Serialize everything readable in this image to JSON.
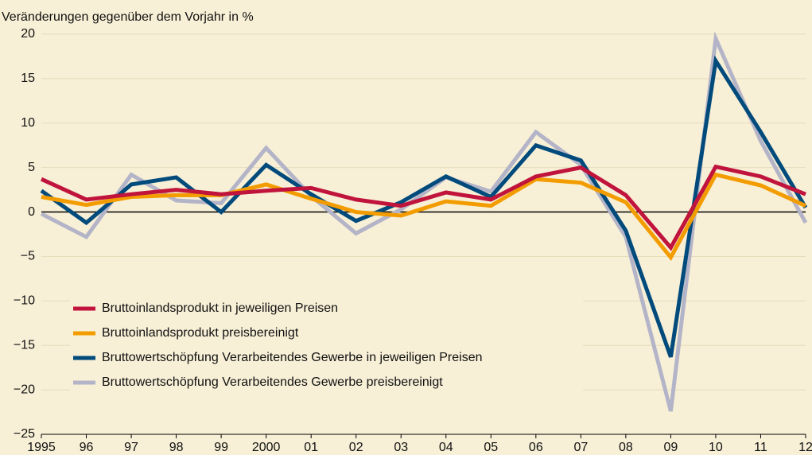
{
  "chart_data": {
    "type": "line",
    "title": "Veränderungen gegenüber dem Vorjahr in %",
    "categories": [
      "1995",
      "96",
      "97",
      "98",
      "99",
      "2000",
      "01",
      "02",
      "03",
      "04",
      "05",
      "06",
      "07",
      "08",
      "09",
      "10",
      "11",
      "12"
    ],
    "series": [
      {
        "name": "Bruttoinlandsprodukt in jeweiligen Preisen",
        "color": "#c0143c",
        "values": [
          3.7,
          1.4,
          2.0,
          2.5,
          2.0,
          2.4,
          2.7,
          1.4,
          0.7,
          2.2,
          1.4,
          4.0,
          5.0,
          1.9,
          -4.0,
          5.1,
          4.0,
          2.0
        ]
      },
      {
        "name": "Bruttoinlandsprodukt preisbereinigt",
        "color": "#f39c00",
        "values": [
          1.7,
          0.8,
          1.7,
          1.9,
          1.9,
          3.1,
          1.5,
          0.0,
          -0.4,
          1.2,
          0.7,
          3.7,
          3.3,
          1.1,
          -5.1,
          4.2,
          3.0,
          0.7
        ]
      },
      {
        "name": "Bruttowertschöpfung Verarbeitendes Gewerbe in jeweiligen Preisen",
        "color": "#004a7c",
        "values": [
          2.4,
          -1.2,
          3.1,
          3.9,
          0.0,
          5.3,
          2.0,
          -1.0,
          1.1,
          4.0,
          1.7,
          7.5,
          5.8,
          -2.1,
          -16.3,
          17.0,
          9.0,
          0.5
        ]
      },
      {
        "name": "Bruttowertschöpfung Verarbeitendes Gewerbe preisbereinigt",
        "color": "#b4b4c8",
        "values": [
          -0.2,
          -2.8,
          4.2,
          1.3,
          1.0,
          7.2,
          1.8,
          -2.4,
          0.3,
          3.9,
          2.3,
          9.0,
          5.3,
          -2.8,
          -22.4,
          19.5,
          8.0,
          -1.2
        ]
      }
    ],
    "ylim": [
      -25,
      20
    ],
    "yticks": [
      {
        "value": -25,
        "label": "−25"
      },
      {
        "value": -20,
        "label": "−20"
      },
      {
        "value": -15,
        "label": "−15"
      },
      {
        "value": -10,
        "label": "−10"
      },
      {
        "value": -5,
        "label": "−5"
      },
      0,
      5,
      10,
      15,
      20
    ],
    "grid": true,
    "legend": "lower left"
  }
}
